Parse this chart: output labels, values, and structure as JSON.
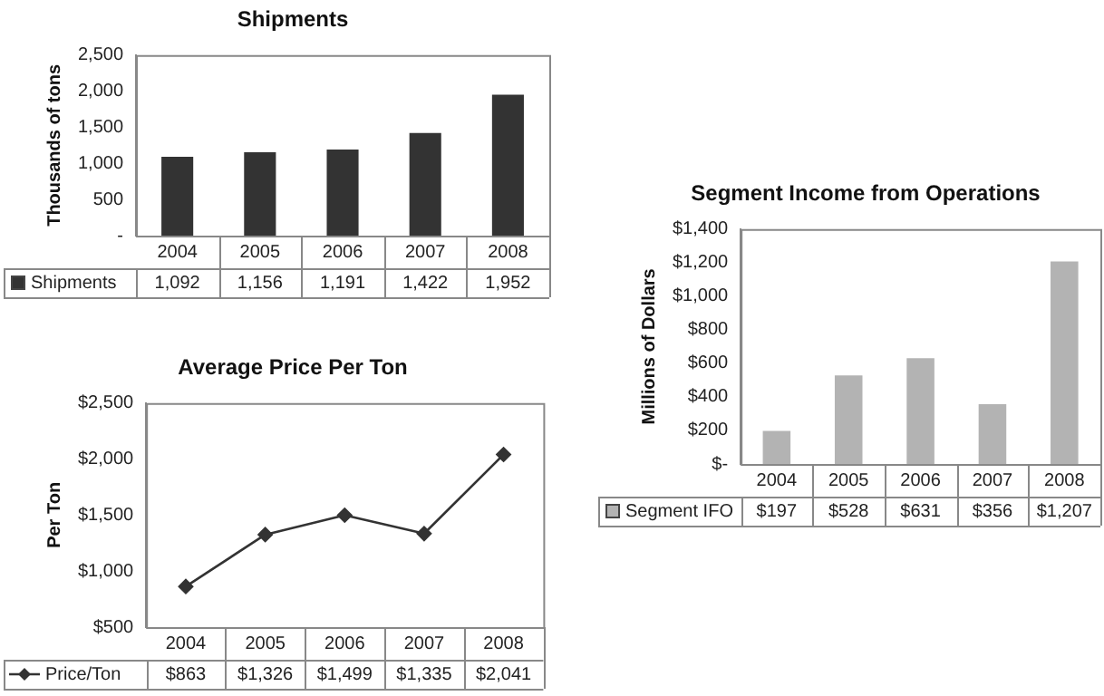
{
  "chart_data": [
    {
      "type": "bar",
      "title": "Shipments",
      "ylabel": "Thousands of tons",
      "categories": [
        "2004",
        "2005",
        "2006",
        "2007",
        "2008"
      ],
      "series": [
        {
          "name": "Shipments",
          "color": "#333333",
          "values": [
            1092,
            1156,
            1191,
            1422,
            1952
          ],
          "value_labels": [
            "1,092",
            "1,156",
            "1,191",
            "1,422",
            "1,952"
          ]
        }
      ],
      "ylim": [
        0,
        2500
      ],
      "yticks": [
        {
          "value": 0,
          "label": "-"
        },
        500,
        {
          "value": 1000,
          "label": "1,000"
        },
        {
          "value": 1500,
          "label": "1,500"
        },
        {
          "value": 2000,
          "label": "2,000"
        },
        {
          "value": 2500,
          "label": "2,500"
        }
      ],
      "grid": false
    },
    {
      "type": "line",
      "title": "Average Price Per Ton",
      "ylabel": "Per Ton",
      "categories": [
        "2004",
        "2005",
        "2006",
        "2007",
        "2008"
      ],
      "series": [
        {
          "name": "Price/Ton",
          "color": "#333333",
          "values": [
            863,
            1326,
            1499,
            1335,
            2041
          ],
          "value_labels": [
            "$863",
            "$1,326",
            "$1,499",
            "$1,335",
            "$2,041"
          ]
        }
      ],
      "ylim": [
        500,
        2500
      ],
      "yticks": [
        {
          "value": 500,
          "label": "$500"
        },
        {
          "value": 1000,
          "label": "$1,000"
        },
        {
          "value": 1500,
          "label": "$1,500"
        },
        {
          "value": 2000,
          "label": "$2,000"
        },
        {
          "value": 2500,
          "label": "$2,500"
        }
      ],
      "grid": false,
      "marker": "diamond",
      "line_style": "solid"
    },
    {
      "type": "bar",
      "title": "Segment Income from Operations",
      "ylabel": "Millions of Dollars",
      "categories": [
        "2004",
        "2005",
        "2006",
        "2007",
        "2008"
      ],
      "series": [
        {
          "name": "Segment IFO",
          "color": "#b3b3b3",
          "values": [
            197,
            528,
            631,
            356,
            1207
          ],
          "value_labels": [
            "$197",
            "$528",
            "$631",
            "$356",
            "$1,207"
          ]
        }
      ],
      "ylim": [
        0,
        1400
      ],
      "yticks": [
        {
          "value": 0,
          "label": "$-"
        },
        {
          "value": 200,
          "label": "$200"
        },
        {
          "value": 400,
          "label": "$400"
        },
        {
          "value": 600,
          "label": "$600"
        },
        {
          "value": 800,
          "label": "$800"
        },
        {
          "value": 1000,
          "label": "$1,000"
        },
        {
          "value": 1200,
          "label": "$1,200"
        },
        {
          "value": 1400,
          "label": "$1,400"
        }
      ],
      "grid": false
    }
  ]
}
